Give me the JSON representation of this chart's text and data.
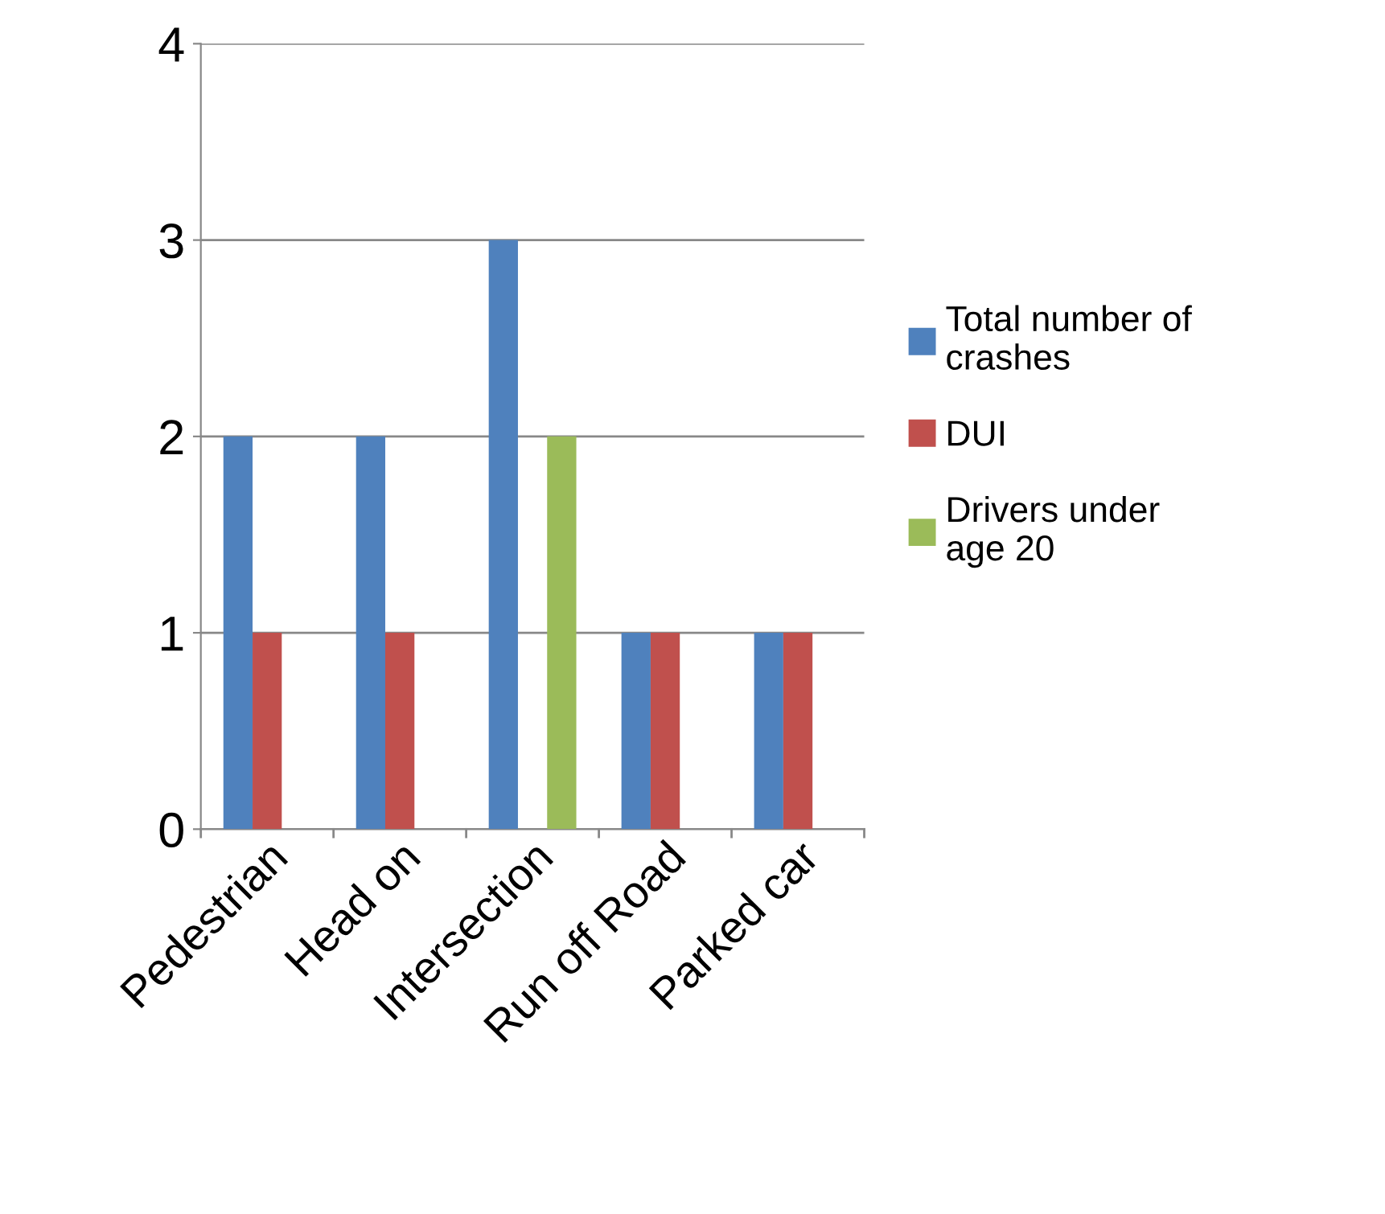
{
  "chart_data": {
    "type": "bar",
    "categories": [
      "Pedestrian",
      "Head on",
      "Intersection",
      "Run off Road",
      "Parked car"
    ],
    "series": [
      {
        "name": "Total number of\ncrashes",
        "color": "#4f81bd",
        "values": [
          2,
          2,
          3,
          1,
          1
        ]
      },
      {
        "name": "DUI",
        "color": "#c0504d",
        "values": [
          1,
          1,
          0,
          1,
          1
        ]
      },
      {
        "name": "Drivers under\nage 20",
        "color": "#9bbb59",
        "values": [
          0,
          0,
          2,
          0,
          0
        ]
      }
    ],
    "ylim": [
      0,
      4
    ],
    "yticks": [
      0,
      1,
      2,
      3,
      4
    ],
    "grid": "y",
    "legend": "right"
  }
}
